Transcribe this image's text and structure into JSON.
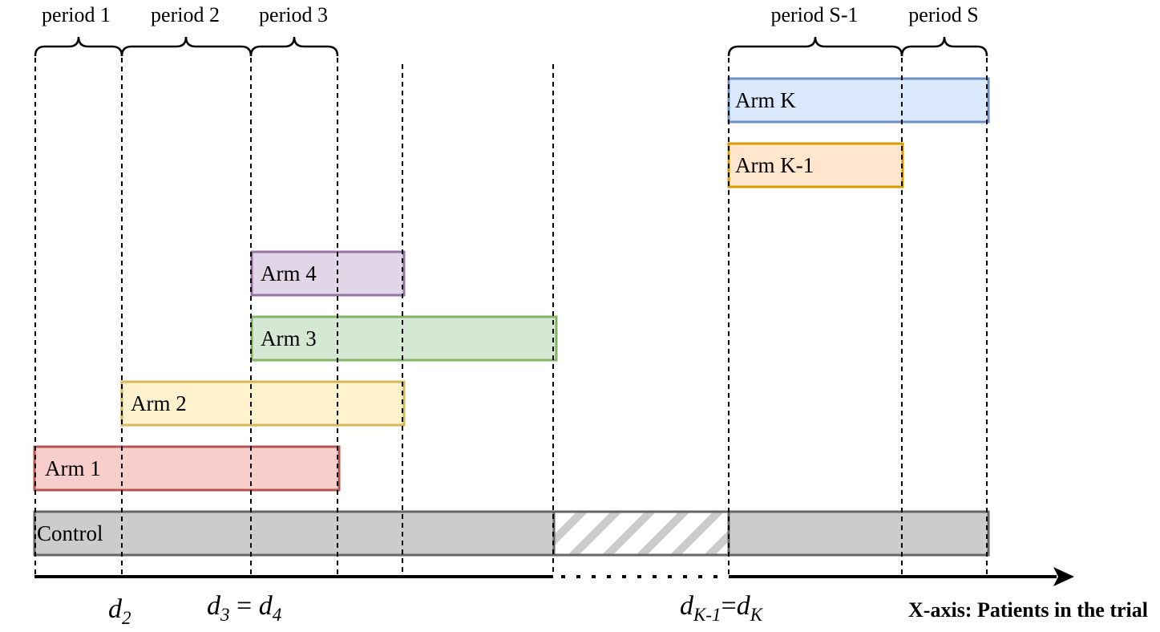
{
  "periods": [
    "period 1",
    "period 2",
    "period 3",
    "period S-1",
    "period S"
  ],
  "arms": {
    "arm_k": "Arm K",
    "arm_k_minus_1": "Arm K-1",
    "arm_4": "Arm 4",
    "arm_3": "Arm 3",
    "arm_2": "Arm 2",
    "arm_1": "Arm 1",
    "control": "Control"
  },
  "colors": {
    "arm_k": {
      "fill": "#dae8fc",
      "stroke": "#6c8ebf"
    },
    "arm_k_minus_1": {
      "fill": "#ffe6cc",
      "stroke": "#d79b00"
    },
    "arm_4": {
      "fill": "#e1d5e7",
      "stroke": "#9673a6"
    },
    "arm_3": {
      "fill": "#d5e8d4",
      "stroke": "#82b366"
    },
    "arm_2": {
      "fill": "#fff2cc",
      "stroke": "#d6b656"
    },
    "arm_1": {
      "fill": "#f8cecc",
      "stroke": "#b85450"
    },
    "control": {
      "fill": "#cccccc",
      "stroke": "#666666"
    }
  },
  "d_labels": {
    "d2": {
      "base": "d",
      "sub": "2"
    },
    "d3_d4": {
      "base1": "d",
      "sub1": "3",
      "eq": " = ",
      "base2": "d",
      "sub2": "4"
    },
    "dk": {
      "base1": "d",
      "sub1": "K-1",
      "eq": "=",
      "base2": "d",
      "sub2": "K"
    }
  },
  "x_axis_label": "X-axis: Patients in the trial"
}
